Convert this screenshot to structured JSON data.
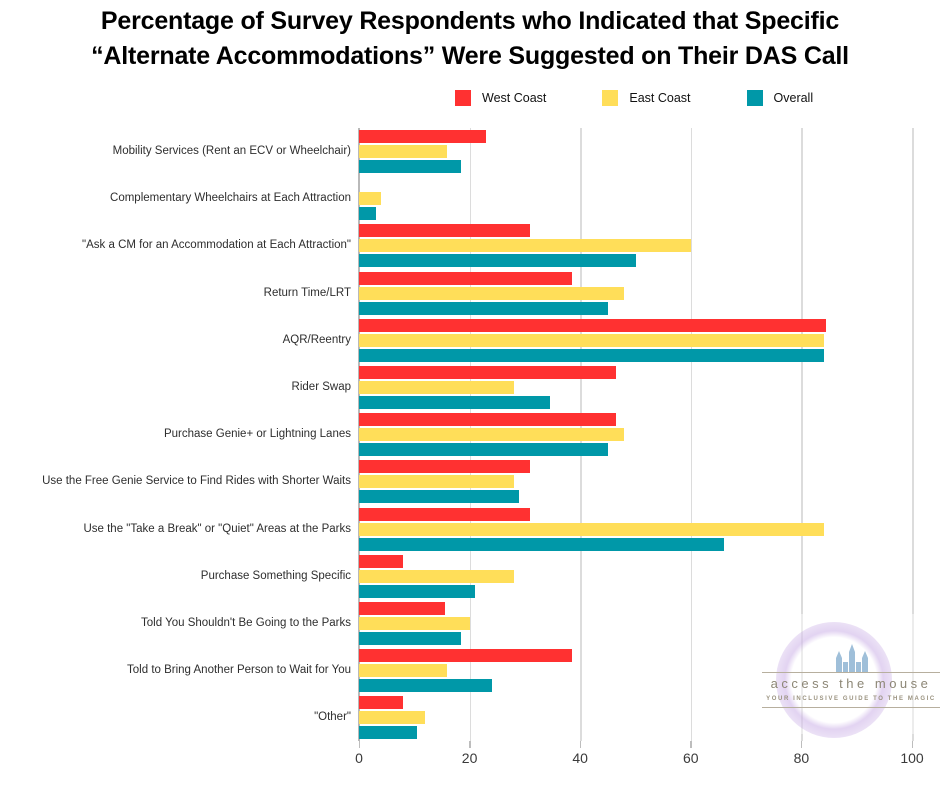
{
  "title": {
    "line1": "Percentage of Survey Respondents who Indicated that Specific",
    "line2": "“Alternate Accommodations” Were Suggested on Their DAS Call"
  },
  "legend": [
    {
      "label": "West Coast",
      "color": "#FF3131"
    },
    {
      "label": "East Coast",
      "color": "#FFDE59"
    },
    {
      "label": "Overall",
      "color": "#0098A8"
    }
  ],
  "chart_data": {
    "type": "bar",
    "orientation": "horizontal",
    "title": "Percentage of Survey Respondents who Indicated that Specific “Alternate Accommodations” Were Suggested on Their DAS Call",
    "categories": [
      "Mobility Services (Rent an ECV or Wheelchair)",
      "Complementary Wheelchairs at Each Attraction",
      "\"Ask a CM for an Accommodation at Each Attraction\"",
      "Return Time/LRT",
      "AQR/Reentry",
      "Rider Swap",
      "Purchase Genie+ or Lightning Lanes",
      "Use the Free Genie Service to Find Rides with Shorter Waits",
      "Use the \"Take a Break\" or \"Quiet\" Areas at the Parks",
      "Purchase Something Specific",
      "Told You Shouldn't Be Going to the Parks",
      "Told to Bring Another Person to Wait for You",
      "\"Other\""
    ],
    "series": [
      {
        "name": "West Coast",
        "color": "#FF3131",
        "values": [
          23,
          0,
          31,
          38.5,
          84.5,
          46.5,
          46.5,
          31,
          31,
          8,
          15.5,
          38.5,
          8
        ]
      },
      {
        "name": "East Coast",
        "color": "#FFDE59",
        "values": [
          16,
          4,
          60,
          48,
          84,
          28,
          48,
          28,
          84,
          28,
          20,
          16,
          12
        ]
      },
      {
        "name": "Overall",
        "color": "#0098A8",
        "values": [
          18.5,
          3,
          50,
          45,
          84,
          34.5,
          45,
          29,
          66,
          21,
          18.5,
          24,
          10.5
        ]
      }
    ],
    "xlabel": "",
    "ylabel": "",
    "xlim": [
      0,
      100
    ],
    "xticks": [
      0,
      20,
      40,
      60,
      80,
      100
    ],
    "grid": true,
    "legend_position": "top"
  },
  "watermark": {
    "name": "access the mouse",
    "tagline": "YOUR INCLUSIVE GUIDE TO THE MAGIC",
    "castle_icon_color": "#8fb4d3",
    "ring_color": "#b792dd"
  }
}
